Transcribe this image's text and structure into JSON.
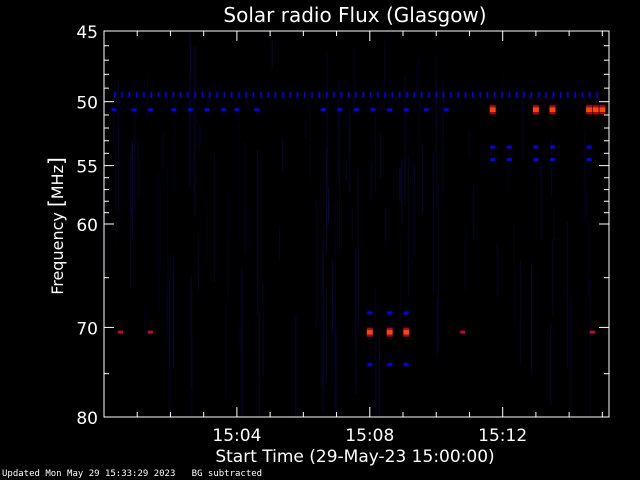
{
  "chart_data": {
    "type": "heatmap",
    "title": "Solar radio Flux (Glasgow)",
    "xlabel": "Start Time (29-May-23 15:00:00)",
    "ylabel_parts": [
      "Frequency ",
      "[",
      "MHz",
      "]"
    ],
    "x_range_minutes": [
      0,
      15.2
    ],
    "x_ticks": [
      {
        "minute": 4,
        "label": "15:04"
      },
      {
        "minute": 8,
        "label": "15:08"
      },
      {
        "minute": 12,
        "label": "15:12"
      }
    ],
    "y_scale": "log",
    "y_range_mhz": [
      45,
      80
    ],
    "y_ticks": [
      {
        "mhz": 45,
        "label": "45"
      },
      {
        "mhz": 50,
        "label": "50"
      },
      {
        "mhz": 55,
        "label": "55"
      },
      {
        "mhz": 60,
        "label": "60"
      },
      {
        "mhz": 70,
        "label": "70"
      },
      {
        "mhz": 80,
        "label": "80"
      }
    ],
    "y_minor_ticks_mhz": [
      46,
      47,
      48,
      49,
      51,
      52,
      53,
      54,
      56,
      57,
      58,
      59,
      65,
      75
    ],
    "colors": {
      "background": "#000000",
      "low": "#0000ff",
      "mid": "#cc0033",
      "high": "#ff4400",
      "axis": "#ffffff"
    },
    "features": [
      {
        "name": "50.6 MHz interference line",
        "mhz": 50.6,
        "minutes": [
          0.3,
          0.9,
          1.4,
          2.1,
          2.6,
          3.1,
          3.6,
          4.0,
          4.6,
          6.6,
          7.1,
          7.6,
          8.1,
          8.6,
          9.1,
          9.7,
          10.3
        ],
        "intensity": "low"
      },
      {
        "name": "50.6 MHz bursts",
        "mhz": 50.6,
        "minutes": [
          11.7,
          13.0,
          13.5,
          14.6,
          14.8,
          15.0
        ],
        "intensity": "high"
      },
      {
        "name": "49.5 MHz dotted line",
        "mhz": 49.5,
        "minutes_from": 0.3,
        "minutes_to": 15.0,
        "intensity": "low"
      },
      {
        "name": "53.5 MHz dashes",
        "mhz": 53.5,
        "minutes": [
          11.7,
          12.2,
          13.0,
          13.5,
          14.6
        ],
        "intensity": "low"
      },
      {
        "name": "54.5 MHz dashes",
        "mhz": 54.5,
        "minutes": [
          11.7,
          12.2,
          13.0,
          13.5,
          14.6
        ],
        "intensity": "low"
      },
      {
        "name": "68.5 MHz dashes",
        "mhz": 68.5,
        "minutes": [
          8.0,
          8.6,
          9.1
        ],
        "intensity": "low"
      },
      {
        "name": "70.5 MHz burst",
        "mhz": 70.5,
        "minutes": [
          8.0,
          8.6,
          9.1
        ],
        "intensity": "high"
      },
      {
        "name": "70.5 MHz spots",
        "mhz": 70.5,
        "minutes": [
          0.5,
          1.4,
          10.8,
          14.7
        ],
        "intensity": "mid"
      },
      {
        "name": "74 MHz dashes",
        "mhz": 74.0,
        "minutes": [
          8.0,
          8.6,
          9.1
        ],
        "intensity": "low"
      }
    ]
  },
  "footer": {
    "updated": "Updated Mon May 29 15:33:29 2023",
    "note": "BG subtracted"
  }
}
